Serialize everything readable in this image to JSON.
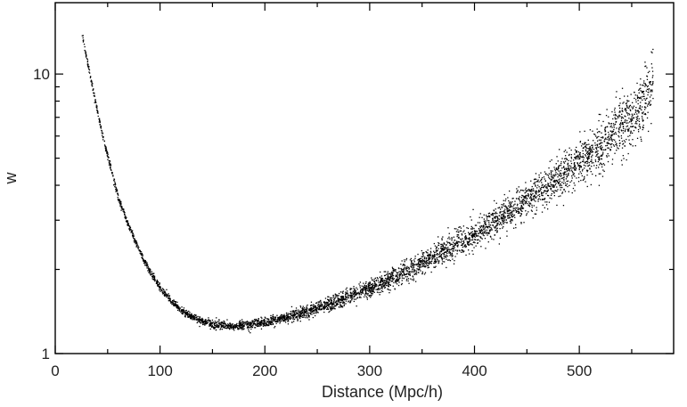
{
  "chart_data": {
    "type": "scatter",
    "title": "",
    "xlabel": "Distance (Mpc/h)",
    "ylabel": "w",
    "xlim": [
      0,
      590
    ],
    "ylim": [
      1,
      18
    ],
    "y_scale": "log",
    "x_ticks": [
      0,
      100,
      200,
      300,
      400,
      500
    ],
    "x_tick_labels": [
      "0",
      "100",
      "200",
      "300",
      "400",
      "500"
    ],
    "y_ticks": [
      1,
      10
    ],
    "y_tick_labels": [
      "1",
      "10"
    ],
    "grid": false,
    "legend": "none",
    "point_color": "#000000",
    "series": [
      {
        "x": [
          25,
          30,
          35,
          40,
          45,
          50,
          55,
          60,
          70,
          80,
          90,
          100,
          110,
          120,
          130,
          140,
          150,
          160,
          170,
          180,
          190,
          200,
          210,
          220,
          230,
          240,
          250,
          260,
          270,
          280,
          290,
          300,
          310,
          320,
          330,
          340,
          350,
          360,
          370,
          380,
          390,
          400,
          410,
          420,
          430,
          440,
          450,
          460,
          470,
          480,
          490,
          500,
          510,
          520,
          530,
          540,
          550,
          560,
          570
        ],
        "y": [
          14.0,
          11.2,
          9.1,
          7.3,
          6.0,
          5.05,
          4.25,
          3.6,
          2.85,
          2.33,
          1.97,
          1.72,
          1.55,
          1.43,
          1.36,
          1.31,
          1.28,
          1.265,
          1.26,
          1.265,
          1.28,
          1.3,
          1.32,
          1.35,
          1.38,
          1.42,
          1.46,
          1.5,
          1.55,
          1.6,
          1.66,
          1.72,
          1.79,
          1.86,
          1.94,
          2.02,
          2.11,
          2.21,
          2.32,
          2.44,
          2.56,
          2.7,
          2.85,
          3.0,
          3.18,
          3.36,
          3.56,
          3.78,
          4.02,
          4.28,
          4.56,
          4.86,
          5.2,
          5.58,
          6.0,
          6.5,
          7.1,
          7.9,
          9.2
        ],
        "scatter_fraction_by_x": [
          [
            0,
            0.012
          ],
          [
            100,
            0.015
          ],
          [
            200,
            0.02
          ],
          [
            300,
            0.035
          ],
          [
            400,
            0.055
          ],
          [
            500,
            0.09
          ],
          [
            570,
            0.14
          ]
        ]
      }
    ]
  }
}
